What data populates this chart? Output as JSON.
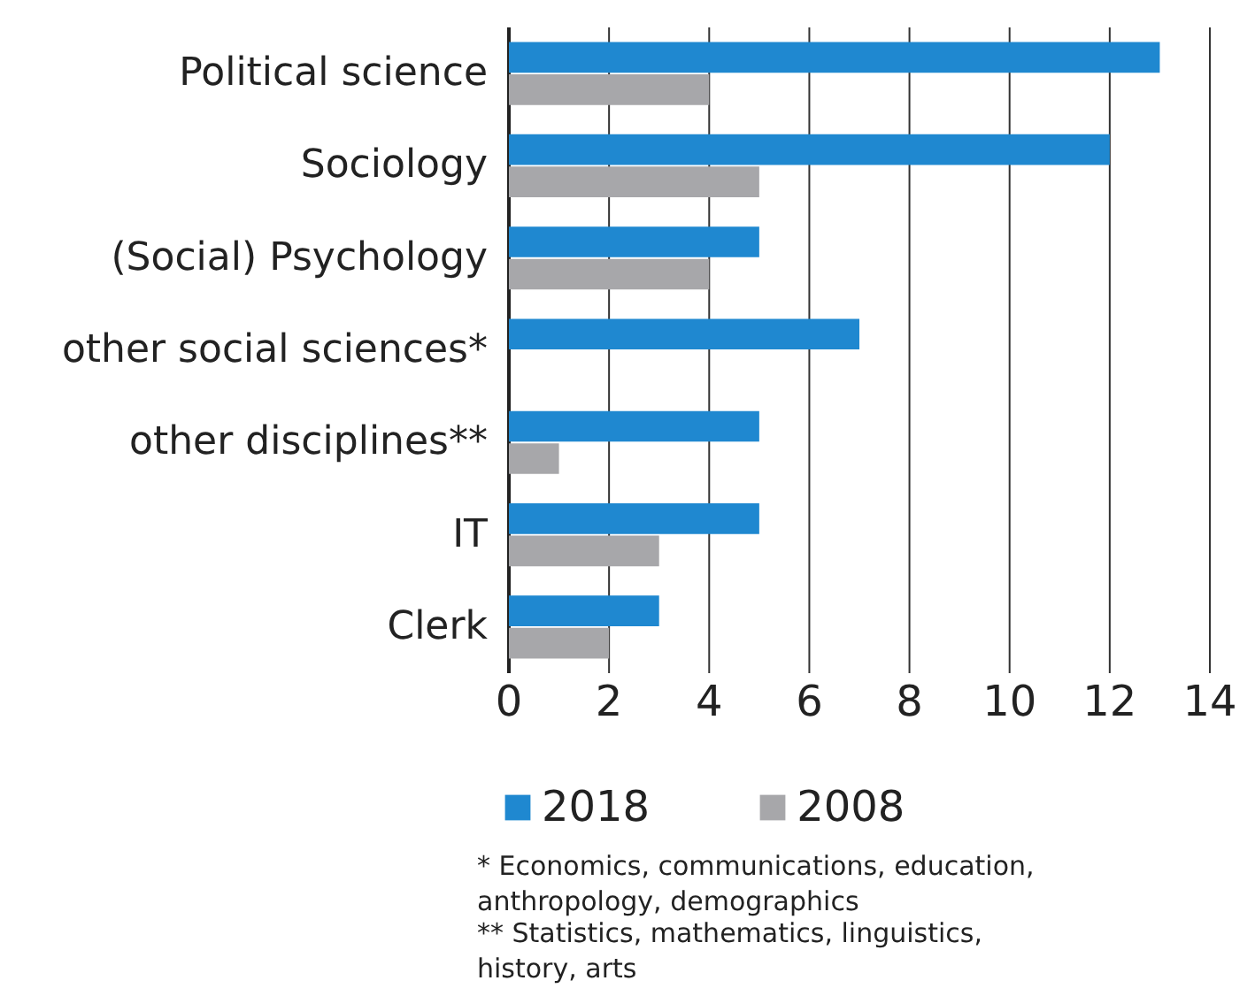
{
  "chart_data": {
    "type": "bar",
    "orientation": "horizontal",
    "categories": [
      "Political science",
      "Sociology",
      "(Social) Psychology",
      "other social sciences*",
      "other disciplines**",
      "IT",
      "Clerk"
    ],
    "series": [
      {
        "name": "2018",
        "color": "#1f88d0",
        "values": [
          13,
          12,
          5,
          7,
          5,
          5,
          3
        ]
      },
      {
        "name": "2008",
        "color": "#a7a7aa",
        "values": [
          4,
          5,
          4,
          null,
          1,
          3,
          2
        ]
      }
    ],
    "xlim": [
      0,
      14
    ],
    "xticks": [
      0,
      2,
      4,
      6,
      8,
      10,
      12,
      14
    ],
    "grid": "x",
    "legend": "bottom",
    "annotations": [
      "* Economics, communications, education, anthropology, demographics",
      "** Statistics, mathematics, linguistics, history, arts"
    ]
  }
}
